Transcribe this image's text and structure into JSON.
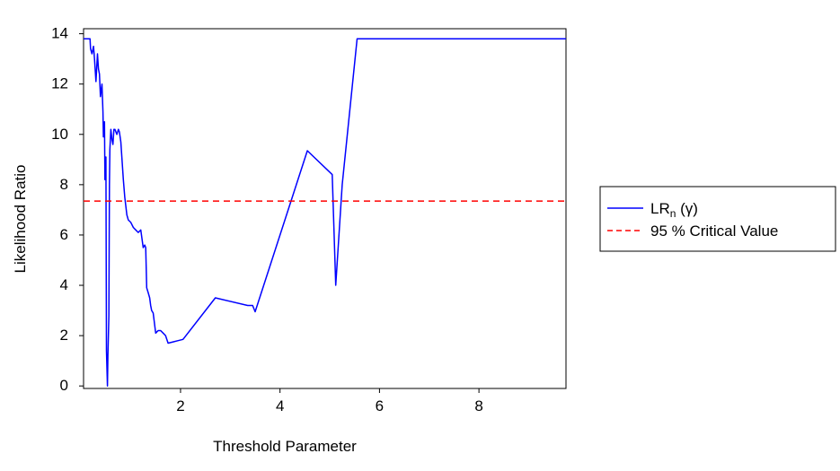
{
  "chart_data": {
    "type": "line",
    "title": "",
    "xlabel": "Threshold Parameter",
    "ylabel": "Likelihood Ratio",
    "xlim": [
      0.05,
      9.75
    ],
    "ylim": [
      -0.1,
      14.2
    ],
    "x_ticks": [
      2,
      4,
      6,
      8
    ],
    "y_ticks": [
      0,
      2,
      4,
      6,
      8,
      10,
      12,
      14
    ],
    "grid": false,
    "legend_position": "right",
    "series": [
      {
        "name": "LRn (γ)",
        "name_main": "LR",
        "name_sub": "n",
        "name_tail": " (γ)",
        "color": "#0000ff",
        "style": "solid",
        "x": [
          0.05,
          0.18,
          0.19,
          0.22,
          0.25,
          0.27,
          0.3,
          0.33,
          0.35,
          0.37,
          0.39,
          0.42,
          0.44,
          0.45,
          0.47,
          0.48,
          0.5,
          0.51,
          0.53,
          0.54,
          0.56,
          0.57,
          0.58,
          0.6,
          0.62,
          0.64,
          0.66,
          0.68,
          0.7,
          0.72,
          0.75,
          0.77,
          0.8,
          0.85,
          0.88,
          0.92,
          0.95,
          1.0,
          1.05,
          1.1,
          1.15,
          1.2,
          1.25,
          1.28,
          1.3,
          1.32,
          1.35,
          1.38,
          1.4,
          1.42,
          1.45,
          1.5,
          1.55,
          1.6,
          1.65,
          1.7,
          1.75,
          1.85,
          1.95,
          2.05,
          2.7,
          3.35,
          3.45,
          3.5,
          4.55,
          5.05,
          5.12,
          5.25,
          5.55,
          5.85,
          9.75
        ],
        "y": [
          13.8,
          13.8,
          13.4,
          13.2,
          13.5,
          13.0,
          12.1,
          13.2,
          12.6,
          12.4,
          11.5,
          12.0,
          10.9,
          9.9,
          10.5,
          8.2,
          9.1,
          1.4,
          0.0,
          1.2,
          2.8,
          8.0,
          9.4,
          10.2,
          9.8,
          9.6,
          10.2,
          10.2,
          10.1,
          10.0,
          10.2,
          10.1,
          9.7,
          8.2,
          7.5,
          6.8,
          6.6,
          6.5,
          6.3,
          6.2,
          6.1,
          6.2,
          5.5,
          5.6,
          5.5,
          3.9,
          3.7,
          3.5,
          3.2,
          3.0,
          2.9,
          2.1,
          2.2,
          2.2,
          2.1,
          2.0,
          1.7,
          1.75,
          1.8,
          1.85,
          3.5,
          3.2,
          3.2,
          2.95,
          9.35,
          8.4,
          4.0,
          8.0,
          13.8,
          13.8,
          13.8
        ]
      },
      {
        "name": "95 % Critical Value",
        "color": "#ff0000",
        "style": "dashed",
        "x": [
          0.05,
          9.75
        ],
        "y": [
          7.35,
          7.35
        ]
      }
    ]
  }
}
